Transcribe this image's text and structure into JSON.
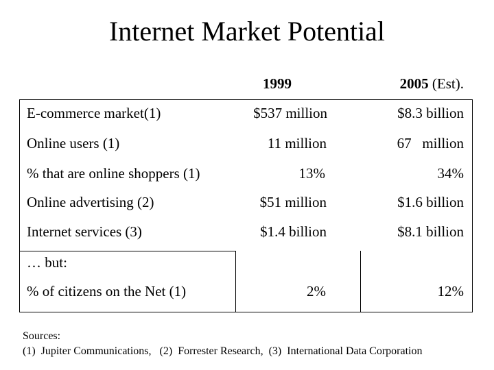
{
  "slide": {
    "title": "Internet Market Potential"
  },
  "columns": {
    "year_1999": "1999",
    "year_2005_bold": "2005",
    "year_2005_suffix": " (Est)."
  },
  "rows": [
    {
      "label": "E-commerce market(1)",
      "v1999": "$537 million",
      "v2005": "$8.3 billion"
    },
    {
      "label": "Online users (1)",
      "v1999": "11 million",
      "v2005": "67   million"
    },
    {
      "label": "% that are online shoppers (1)",
      "v1999": "13%",
      "v2005": "34%"
    },
    {
      "label": "Online advertising (2)",
      "v1999": "$51 million",
      "v2005": "$1.6 billion"
    },
    {
      "label": "Internet services (3)",
      "v1999": "$1.4 billion",
      "v2005": "$8.1 billion"
    },
    {
      "label": "… but:",
      "v1999": "",
      "v2005": ""
    },
    {
      "label": "% of citizens on the Net (1)",
      "v1999": "2%",
      "v2005": "12%"
    }
  ],
  "sources": {
    "heading": "Sources:",
    "line": "(1)  Jupiter Communications,   (2)  Forrester Research,  (3)  International Data Corporation"
  }
}
